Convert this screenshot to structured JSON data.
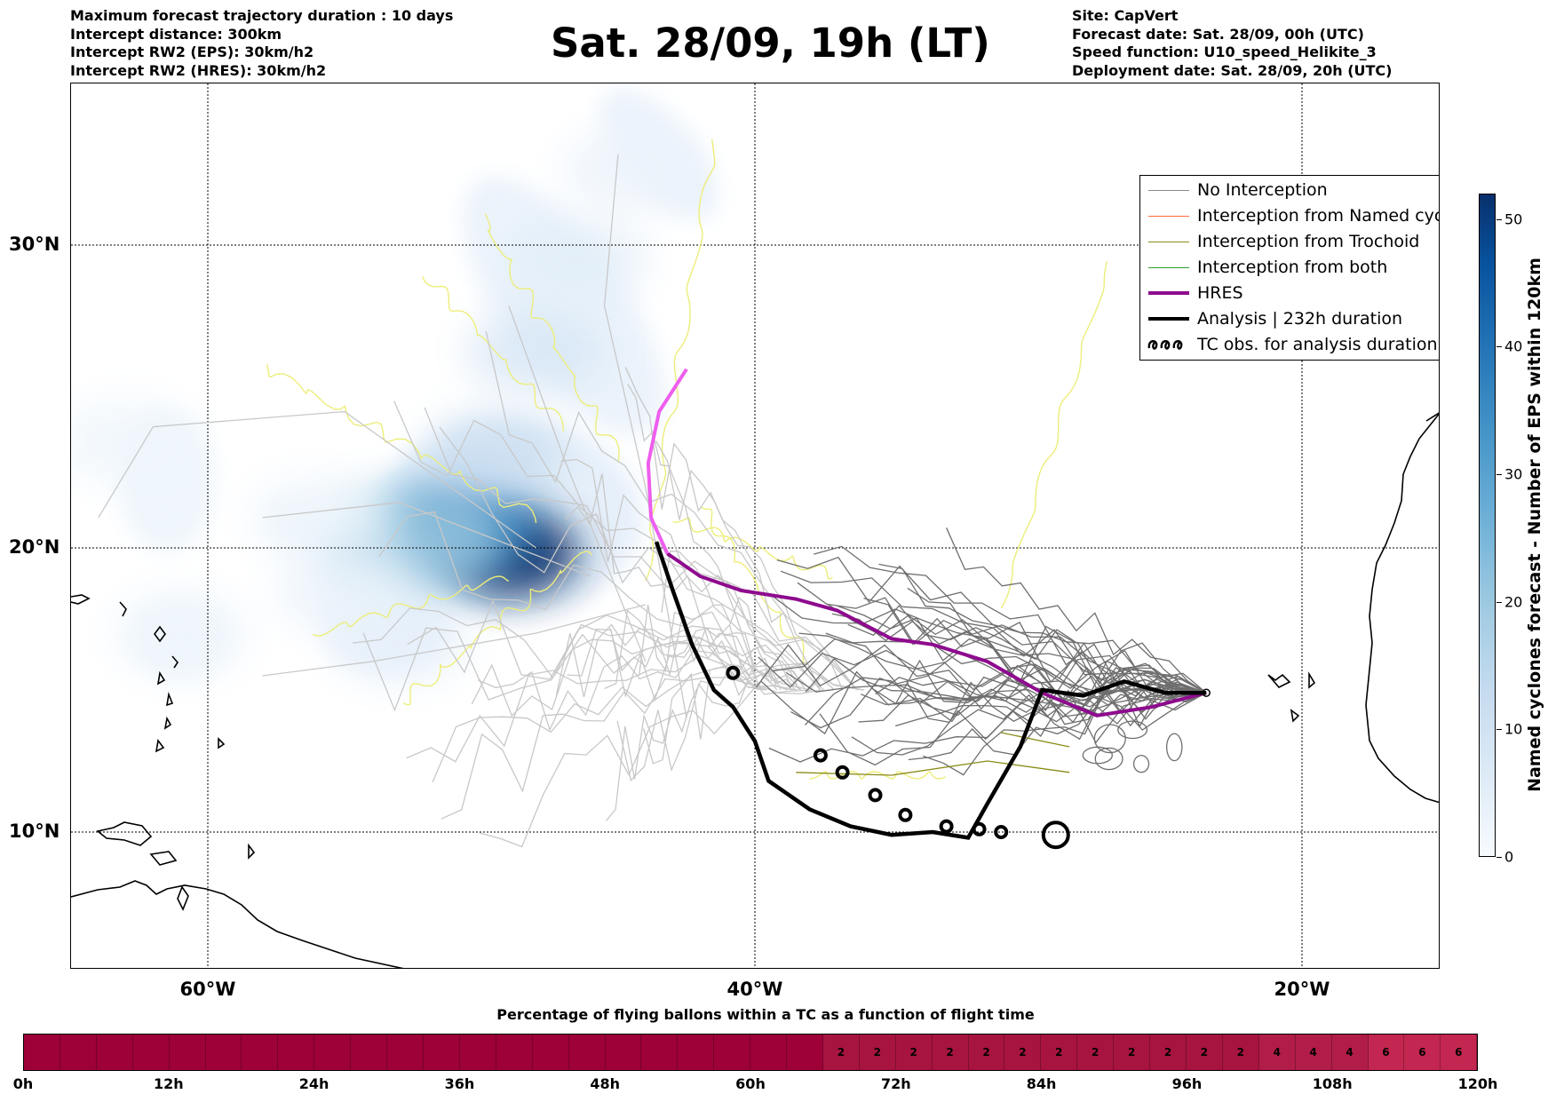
{
  "header": {
    "left": [
      "Maximum forecast trajectory duration : 10 days",
      "Intercept distance: 300km",
      "Intercept RW2 (EPS):  30km/h2",
      "Intercept RW2 (HRES): 30km/h2"
    ],
    "title": "Sat. 28/09, 19h (LT)",
    "right": [
      "Site: CapVert",
      "Forecast date: Sat. 28/09, 00h (UTC)",
      "Speed function: U10_speed_Helikite_3",
      "Deployment date: Sat. 28/09, 20h (UTC)"
    ]
  },
  "map": {
    "lat_labels": [
      "30°N",
      "20°N",
      "10°N"
    ],
    "lon_labels": [
      "60°W",
      "40°W",
      "20°W"
    ],
    "site": "CapVert",
    "density_blobs": [
      {
        "lon": -49.0,
        "lat": 19.8,
        "level": 52
      },
      {
        "lon": -50.5,
        "lat": 20.8,
        "level": 38
      },
      {
        "lon": -52.5,
        "lat": 20.2,
        "level": 20
      },
      {
        "lon": -49.5,
        "lat": 23.0,
        "level": 12
      },
      {
        "lon": -48.0,
        "lat": 26.5,
        "level": 8
      },
      {
        "lon": -46.5,
        "lat": 29.5,
        "level": 5
      },
      {
        "lon": -44.5,
        "lat": 32.5,
        "level": 3
      },
      {
        "lon": -63.0,
        "lat": 23.5,
        "level": 2
      },
      {
        "lon": -61.0,
        "lat": 17.0,
        "level": 2
      },
      {
        "lon": -56.0,
        "lat": 21.0,
        "level": 2
      },
      {
        "lon": -53.0,
        "lat": 16.8,
        "level": 4
      },
      {
        "lon": -55.0,
        "lat": 18.5,
        "level": 3
      }
    ],
    "hres_track": [
      [
        -23.5,
        14.9
      ],
      [
        -25.5,
        14.4
      ],
      [
        -27.5,
        14.1
      ],
      [
        -29.5,
        14.9
      ],
      [
        -31.5,
        16.0
      ],
      [
        -33.5,
        16.6
      ],
      [
        -35.0,
        16.8
      ],
      [
        -37.0,
        17.8
      ],
      [
        -38.5,
        18.2
      ],
      [
        -40.5,
        18.5
      ],
      [
        -42.0,
        19.0
      ],
      [
        -43.2,
        19.8
      ],
      [
        -43.8,
        21.0
      ],
      [
        -43.9,
        22.8
      ],
      [
        -43.5,
        24.5
      ],
      [
        -42.5,
        25.9
      ]
    ],
    "analysis_track": [
      [
        -23.5,
        14.9
      ],
      [
        -25.0,
        14.9
      ],
      [
        -26.5,
        15.3
      ],
      [
        -28.0,
        14.8
      ],
      [
        -29.5,
        15.0
      ],
      [
        -30.3,
        13.0
      ],
      [
        -31.5,
        11.0
      ],
      [
        -32.2,
        9.8
      ],
      [
        -33.5,
        10.0
      ],
      [
        -35.0,
        9.9
      ],
      [
        -36.5,
        10.2
      ],
      [
        -38.0,
        10.8
      ],
      [
        -39.5,
        11.8
      ],
      [
        -40.0,
        13.2
      ],
      [
        -40.8,
        14.4
      ],
      [
        -41.5,
        15.0
      ],
      [
        -42.3,
        16.6
      ],
      [
        -43.0,
        18.5
      ],
      [
        -43.6,
        20.2
      ]
    ],
    "analysis_loops": [
      [
        -40.8,
        15.6
      ],
      [
        -37.6,
        12.7
      ],
      [
        -36.8,
        12.1
      ],
      [
        -35.6,
        11.3
      ],
      [
        -34.5,
        10.6
      ],
      [
        -33.0,
        10.2
      ],
      [
        -31.8,
        10.1
      ],
      [
        -31.0,
        10.0
      ],
      [
        -29.0,
        9.9
      ]
    ]
  },
  "legend": {
    "items": [
      {
        "label": "No Interception",
        "color": "#888888",
        "style": "line-thin"
      },
      {
        "label": "Interception from Named cyclone",
        "color": "#ff6b3d",
        "style": "line-thin"
      },
      {
        "label": "Interception from Trochoid",
        "color": "#8b8b1a",
        "style": "line-thin"
      },
      {
        "label": "Interception from both",
        "color": "#2ca02c",
        "style": "line-thin"
      },
      {
        "label": "HRES",
        "color": "#8e0b8e",
        "style": "line-thick"
      },
      {
        "label": "Analysis | 232h duration",
        "color": "#000000",
        "style": "line-thick"
      },
      {
        "label": "TC obs. for analysis duration",
        "color": "#000000",
        "style": "loops"
      }
    ]
  },
  "colorbar": {
    "title": "Named cyclones forecast - Number of EPS within 120km",
    "ticks": [
      0,
      10,
      20,
      30,
      40,
      50
    ],
    "max": 52
  },
  "flight_bar": {
    "title": "Percentage of flying ballons within a TC as a function of flight time",
    "time_labels": [
      "0h",
      "12h",
      "24h",
      "36h",
      "48h",
      "60h",
      "72h",
      "84h",
      "96h",
      "108h",
      "120h"
    ],
    "cell_values": [
      0,
      0,
      0,
      0,
      0,
      0,
      0,
      0,
      0,
      0,
      0,
      0,
      0,
      0,
      0,
      0,
      0,
      0,
      0,
      0,
      0,
      0,
      2,
      2,
      2,
      2,
      2,
      2,
      2,
      2,
      2,
      2,
      2,
      2,
      4,
      4,
      4,
      6,
      6,
      6
    ]
  }
}
